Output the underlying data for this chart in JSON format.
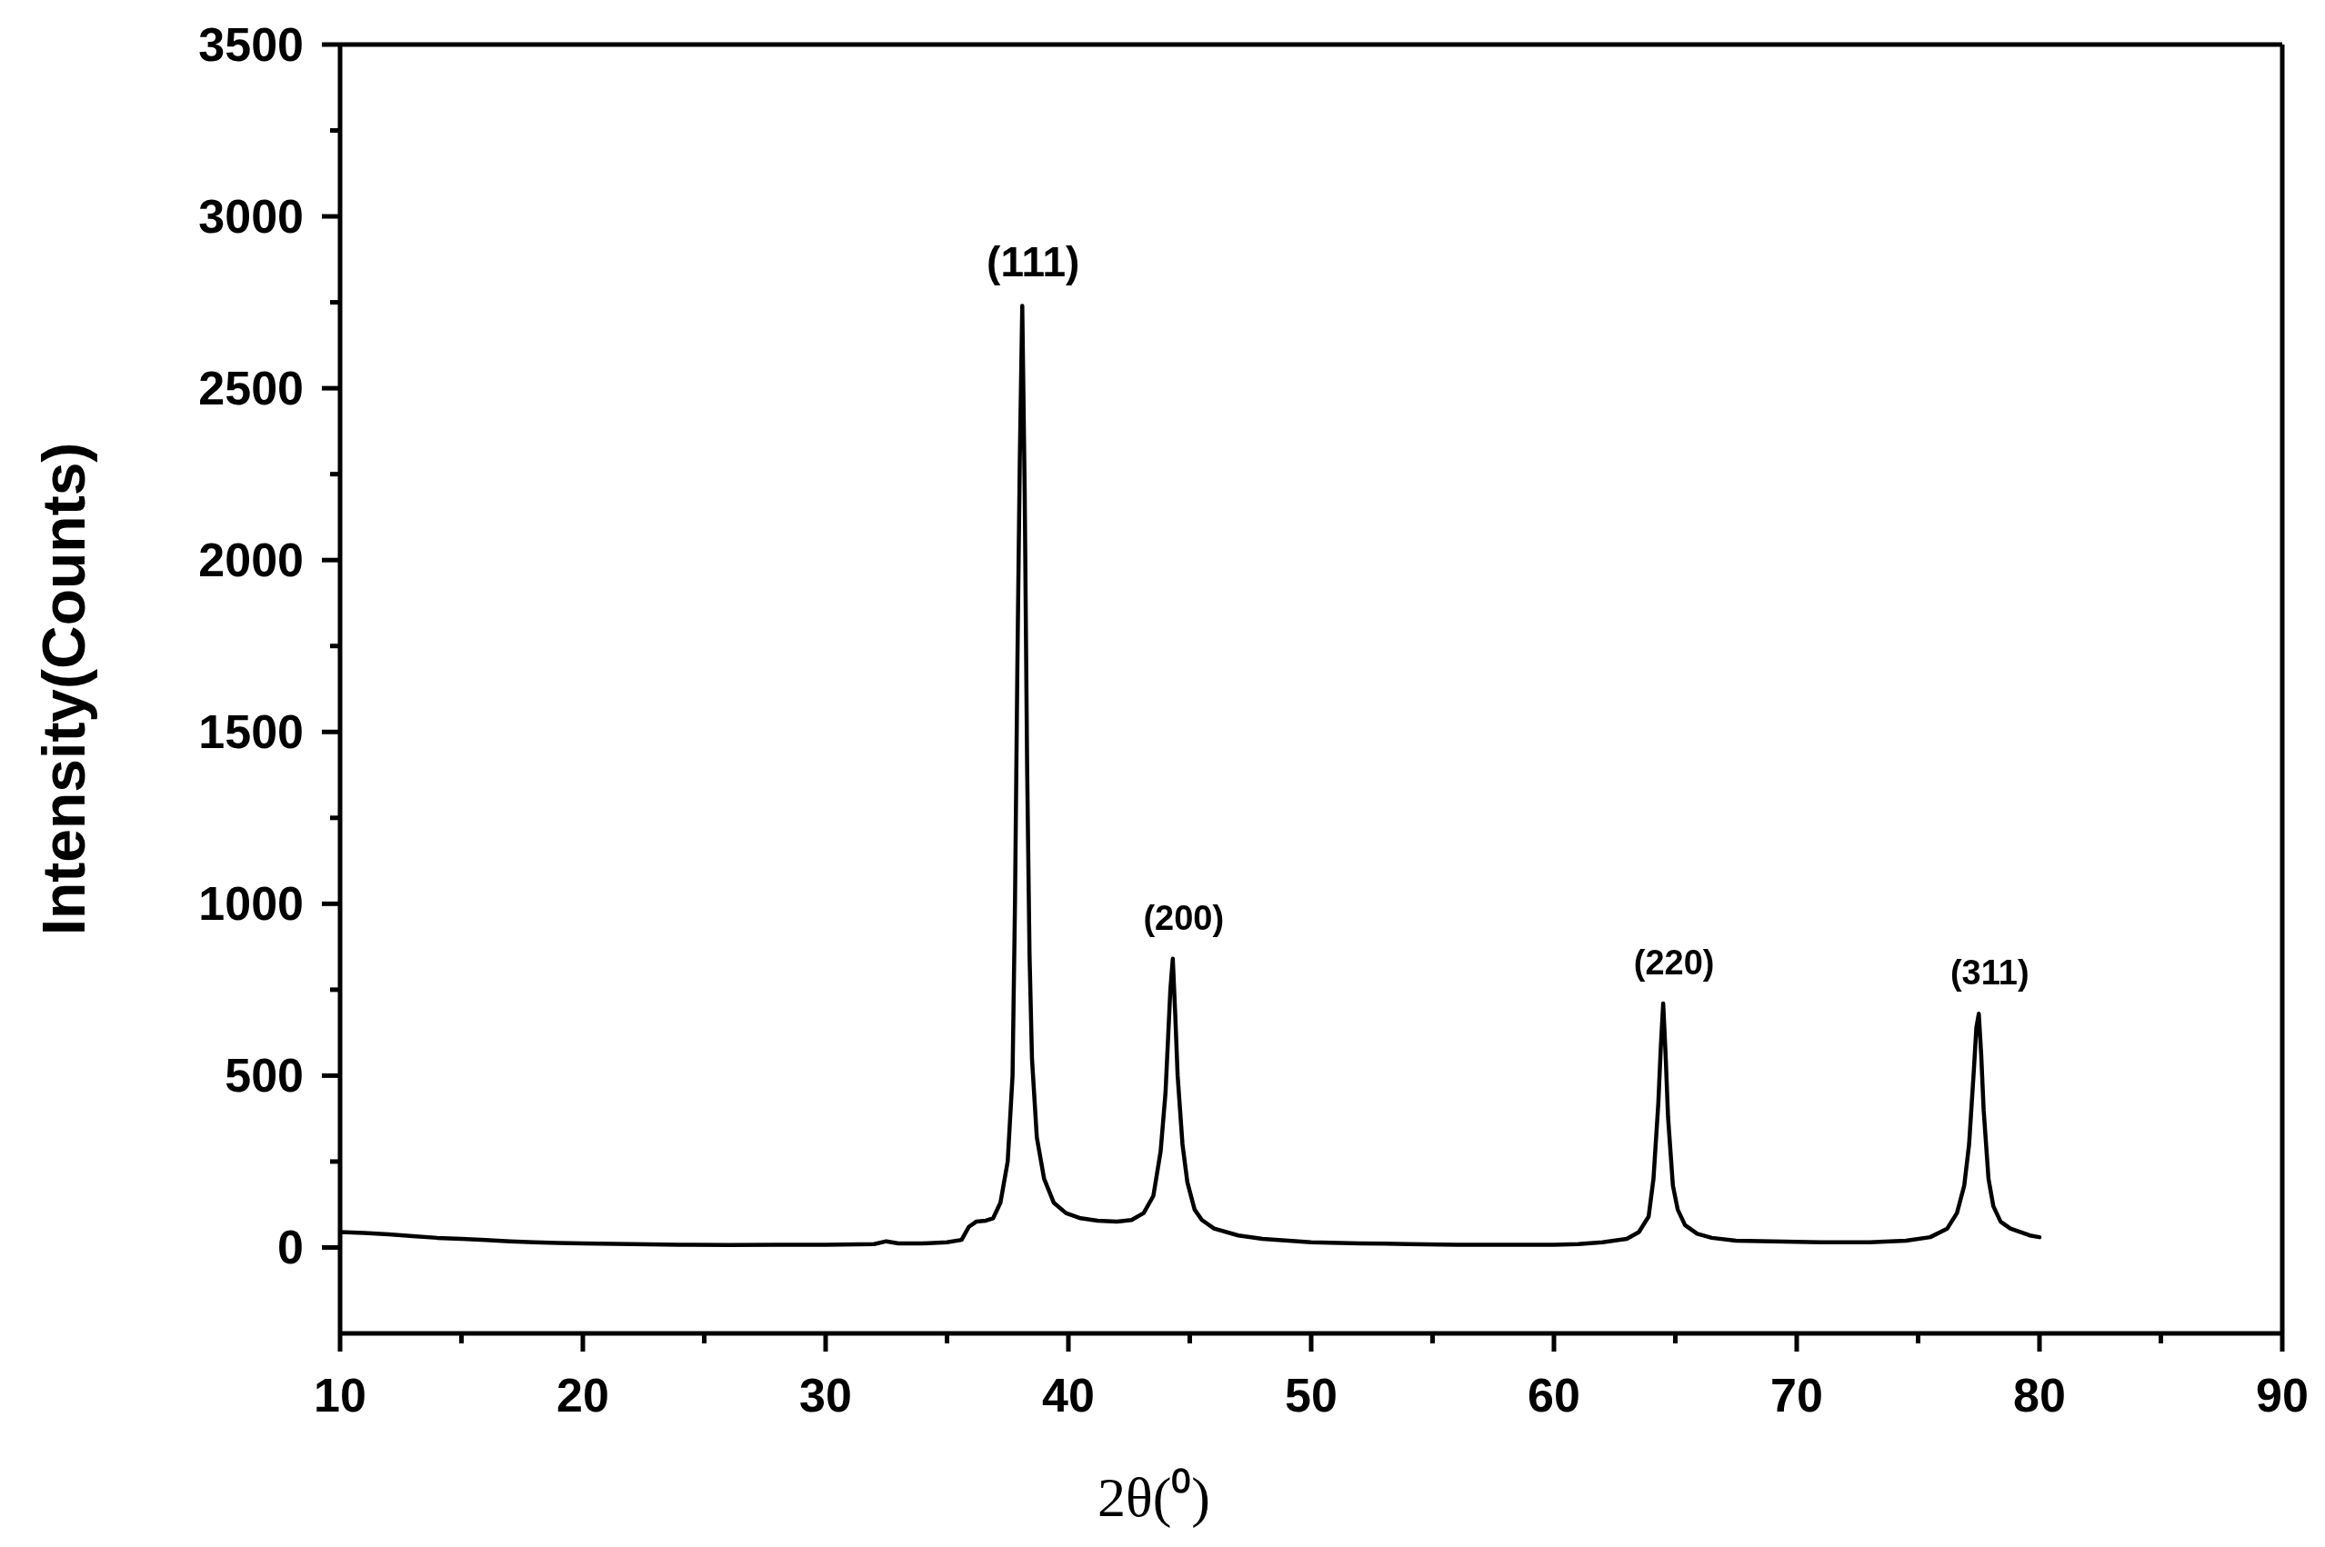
{
  "chart_data": {
    "type": "line",
    "xlabel": "2θ(⁰)",
    "ylabel": "Intensity(Counts)",
    "x": [
      10,
      11,
      12,
      13,
      14,
      15,
      16,
      17,
      18,
      19,
      20,
      22,
      24,
      26,
      28,
      30,
      32,
      32.5,
      33,
      34,
      35,
      35.6,
      35.9,
      36.2,
      36.6,
      36.9,
      37.2,
      37.5,
      37.7,
      37.8,
      37.9,
      38.0,
      38.1,
      38.2,
      38.3,
      38.4,
      38.5,
      38.7,
      39.0,
      39.4,
      39.9,
      40.5,
      41.2,
      42,
      42.6,
      43.1,
      43.5,
      43.8,
      44.0,
      44.1,
      44.2,
      44.3,
      44.4,
      44.5,
      44.7,
      44.9,
      45.2,
      45.5,
      46,
      47,
      48,
      50,
      52,
      54,
      56,
      58,
      60,
      61,
      62,
      63,
      63.5,
      63.9,
      64.1,
      64.3,
      64.4,
      64.5,
      64.6,
      64.7,
      64.9,
      65.1,
      65.4,
      65.9,
      66.5,
      67.5,
      69,
      71,
      73,
      74.5,
      75.5,
      76.2,
      76.6,
      76.9,
      77.1,
      77.3,
      77.4,
      77.5,
      77.6,
      77.7,
      77.9,
      78.1,
      78.4,
      78.8,
      79.2,
      79.6,
      80
    ],
    "values": [
      45,
      42,
      38,
      33,
      28,
      25,
      22,
      18,
      15,
      13,
      12,
      10,
      8,
      7,
      8,
      8,
      10,
      18,
      12,
      12,
      15,
      22,
      60,
      75,
      78,
      85,
      130,
      250,
      500,
      1000,
      1700,
      2300,
      2740,
      2200,
      1400,
      850,
      550,
      320,
      200,
      130,
      100,
      85,
      78,
      75,
      80,
      100,
      150,
      280,
      450,
      600,
      750,
      840,
      680,
      500,
      300,
      190,
      110,
      80,
      55,
      35,
      25,
      15,
      12,
      10,
      8,
      8,
      8,
      10,
      15,
      25,
      45,
      90,
      200,
      420,
      580,
      710,
      560,
      380,
      180,
      110,
      65,
      40,
      28,
      20,
      18,
      15,
      15,
      20,
      30,
      55,
      100,
      180,
      300,
      520,
      640,
      680,
      560,
      400,
      200,
      120,
      75,
      55,
      45,
      35,
      30
    ],
    "color": "#000000",
    "marker": "none",
    "line_style": "solid",
    "xlim": [
      10,
      90
    ],
    "ylim": [
      -250,
      3500
    ],
    "xticks": [
      10,
      {
        "value": 15,
        "label": null
      },
      20,
      {
        "value": 25,
        "label": null
      },
      30,
      {
        "value": 35,
        "label": null
      },
      40,
      {
        "value": 45,
        "label": null
      },
      50,
      {
        "value": 55,
        "label": null
      },
      60,
      {
        "value": 65,
        "label": null
      },
      70,
      {
        "value": 75,
        "label": null
      },
      80,
      {
        "value": 85,
        "label": null
      },
      90
    ],
    "yticks": [
      0,
      {
        "value": 250,
        "label": null
      },
      500,
      {
        "value": 750,
        "label": null
      },
      1000,
      {
        "value": 1250,
        "label": null
      },
      1500,
      {
        "value": 1750,
        "label": null
      },
      2000,
      {
        "value": 2250,
        "label": null
      },
      2500,
      {
        "value": 2750,
        "label": null
      },
      3000,
      {
        "value": 3250,
        "label": null
      },
      3500
    ],
    "annotations": [
      {
        "text": "(111)",
        "x": 38.1,
        "y": 2740
      },
      {
        "text": "(200)",
        "x": 44.3,
        "y": 840
      },
      {
        "text": "(220)",
        "x": 64.5,
        "y": 710
      },
      {
        "text": "(311)",
        "x": 77.5,
        "y": 680
      }
    ]
  }
}
